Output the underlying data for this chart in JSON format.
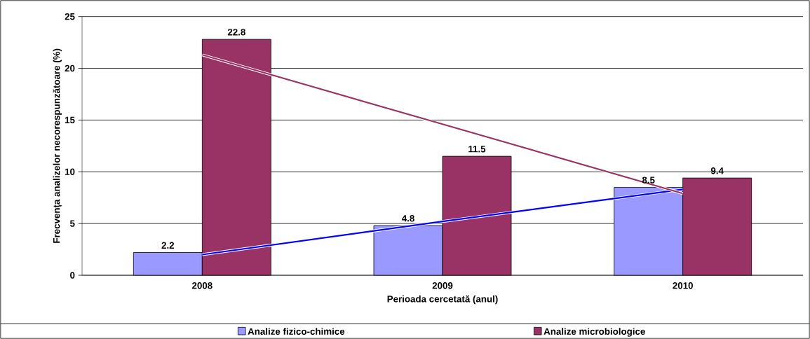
{
  "chart_data": {
    "type": "bar",
    "xlabel": "Perioada cercetată (anul)",
    "ylabel": "Frecvența analizelor necorespunzătoare (%)",
    "categories": [
      "2008",
      "2009",
      "2010"
    ],
    "series": [
      {
        "name": "Analize fizico-chimice",
        "color": "#9999ff",
        "values": [
          2.2,
          4.8,
          8.5
        ],
        "value_labels": [
          "2.2",
          "4.8",
          "8.5"
        ]
      },
      {
        "name": "Analize microbiologice",
        "color": "#993366",
        "values": [
          22.8,
          11.5,
          9.4
        ],
        "value_labels": [
          "22.8",
          "11.5",
          "9.4"
        ]
      },
      {
        "type": "line",
        "color": "#0000ff",
        "values": [
          2.0,
          5.2,
          8.3
        ]
      },
      {
        "type": "line",
        "color": "#993366",
        "values": [
          21.3,
          14.6,
          7.9
        ]
      }
    ],
    "ylim": [
      0,
      25
    ],
    "yticks": [
      0,
      5,
      10,
      15,
      20,
      25
    ],
    "grid": "y",
    "legend": "bottom"
  }
}
